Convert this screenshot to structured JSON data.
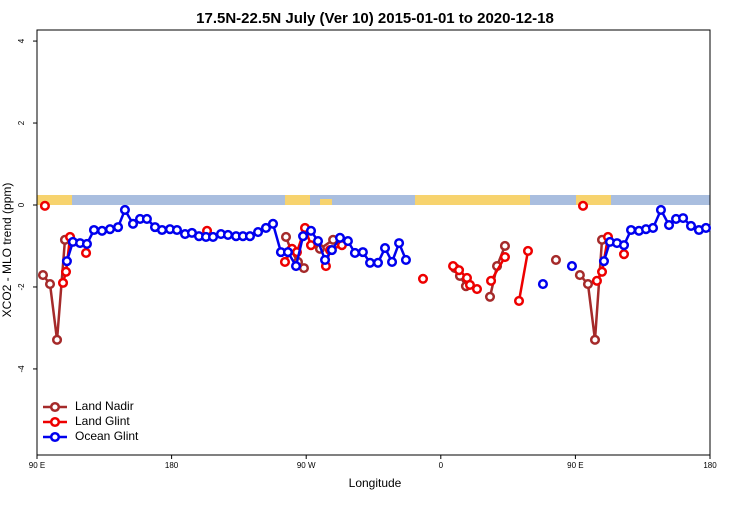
{
  "chart_data": {
    "type": "line",
    "title": "17.5N-22.5N July (Ver 10)   2015-01-01 to 2020-12-18",
    "x_label": "Longitude",
    "y_label": "XCO2 - MLO trend (ppm)",
    "xlim": [
      90,
      540
    ],
    "ylim": [
      -6.1,
      4.27
    ],
    "xticks": [
      {
        "value": 90,
        "label": "90 E"
      },
      180,
      {
        "value": 270,
        "label": "90 W"
      },
      {
        "value": 360,
        "label": "0"
      },
      {
        "value": 450,
        "label": "90 E"
      },
      {
        "value": 540,
        "label": "180"
      }
    ],
    "yticks": [
      4,
      2,
      0,
      -2,
      -4
    ],
    "legend": "bottom-left",
    "series": [
      {
        "name": "Land Nadir",
        "color": "#a52a2a",
        "x": [
          94,
          98.7,
          103.4,
          108.7,
          null,
          256.5,
          259.8,
          264.5,
          268.5,
          null,
          279.2,
          288,
          null,
          369.5,
          372.8,
          376.8,
          null,
          392.9,
          397.6,
          402.9,
          null,
          437,
          null,
          453,
          458.4,
          463.1,
          467.8
        ],
        "values": [
          -1.71,
          -1.93,
          -3.29,
          -0.85,
          null,
          -0.78,
          -1.1,
          -1.39,
          -1.54,
          null,
          -1.07,
          -0.85,
          null,
          -1.54,
          -1.73,
          -1.98,
          null,
          -2.24,
          -1.49,
          -1.0,
          null,
          -1.34,
          null,
          -1.71,
          -1.93,
          -3.29,
          -0.85
        ]
      },
      {
        "name": "Land Glint",
        "color": "#ee0000",
        "x": [
          95.3,
          null,
          107.4,
          109.4,
          112.1,
          null,
          122.8,
          null,
          203.7,
          null,
          255.8,
          260.5,
          263.8,
          269.2,
          273.2,
          null,
          283.2,
          285.9,
          293.9,
          null,
          348.1,
          null,
          368.2,
          372.2,
          377.5,
          379.5,
          384.2,
          null,
          393.6,
          402.9,
          null,
          412.3,
          418.3,
          null,
          455.1,
          null,
          464.4,
          467.8,
          471.8,
          null,
          482.5
        ],
        "values": [
          -0.02,
          null,
          -1.9,
          -1.63,
          -0.78,
          null,
          -1.17,
          null,
          -0.63,
          null,
          -1.39,
          -1.07,
          -1.15,
          -0.56,
          -0.98,
          null,
          -1.49,
          -1.1,
          -0.98,
          null,
          -1.8,
          null,
          -1.49,
          -1.59,
          -1.78,
          -1.95,
          -2.05,
          null,
          -1.85,
          -1.27,
          null,
          -2.34,
          -1.12,
          null,
          -0.02,
          null,
          -1.85,
          -1.63,
          -0.78,
          null,
          -1.2
        ]
      },
      {
        "name": "Ocean Glint",
        "color": "#0000ee",
        "x": [
          110,
          114,
          118.8,
          123.4,
          128.1,
          133.5,
          138.8,
          144.2,
          148.8,
          154.2,
          158.9,
          163.5,
          168.9,
          173.6,
          178.9,
          183.6,
          189,
          193.6,
          198.3,
          203,
          207.7,
          213,
          217.7,
          223.1,
          227.7,
          232.4,
          237.8,
          243.1,
          247.8,
          253.1,
          257.8,
          263.2,
          267.9,
          273.2,
          277.9,
          282.6,
          287.2,
          292.6,
          297.9,
          302.6,
          307.9,
          312.7,
          318,
          322.7,
          327.4,
          332.1,
          336.7,
          null,
          428.3,
          null,
          447.7,
          null,
          469.1,
          473.1,
          477.8,
          482.5,
          487.2,
          492.5,
          497.2,
          501.9,
          507.2,
          512.6,
          517.3,
          522,
          527.3,
          532.6,
          537.3
        ],
        "values": [
          -1.37,
          -0.9,
          -0.93,
          -0.95,
          -0.61,
          -0.63,
          -0.59,
          -0.54,
          -0.12,
          -0.46,
          -0.34,
          -0.34,
          -0.54,
          -0.61,
          -0.59,
          -0.61,
          -0.71,
          -0.68,
          -0.76,
          -0.78,
          -0.78,
          -0.71,
          -0.73,
          -0.76,
          -0.76,
          -0.76,
          -0.66,
          -0.56,
          -0.46,
          -1.15,
          -1.15,
          -1.49,
          -0.76,
          -0.63,
          -0.88,
          -1.34,
          -1.1,
          -0.8,
          -0.88,
          -1.17,
          -1.15,
          -1.41,
          -1.41,
          -1.05,
          -1.39,
          -0.93,
          -1.34,
          null,
          -1.93,
          null,
          -1.49,
          null,
          -1.37,
          -0.9,
          -0.93,
          -0.98,
          -0.61,
          -0.63,
          -0.59,
          -0.56,
          -0.12,
          -0.49,
          -0.34,
          -0.32,
          -0.51,
          -0.61,
          -0.56
        ]
      }
    ]
  }
}
